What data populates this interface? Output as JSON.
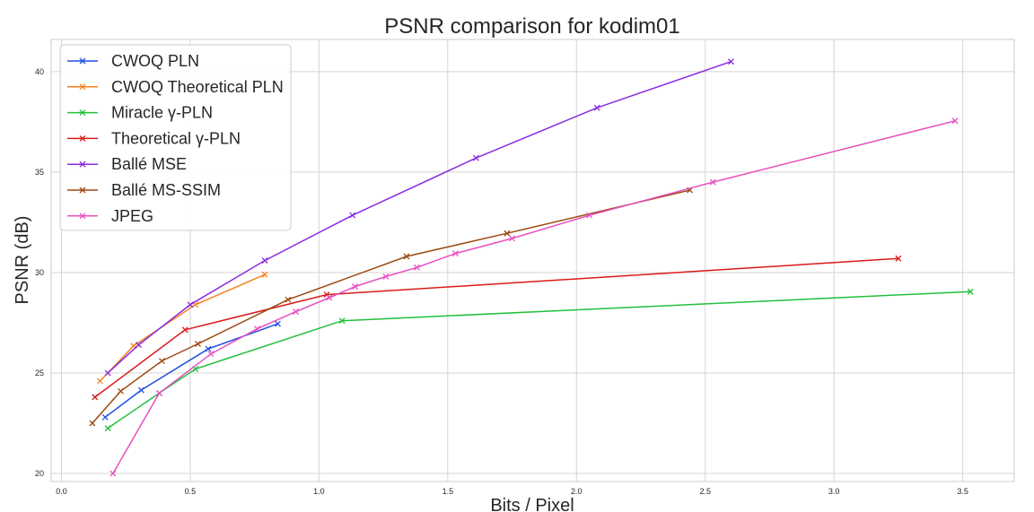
{
  "chart_data": {
    "type": "line",
    "title": "PSNR comparison for kodim01",
    "xlabel": "Bits / Pixel",
    "ylabel": "PSNR (dB)",
    "xlim": [
      -0.04,
      3.7
    ],
    "ylim": [
      19.6,
      41.6
    ],
    "xticks": [
      0.0,
      0.5,
      1.0,
      1.5,
      2.0,
      2.5,
      3.0,
      3.5
    ],
    "xtick_labels": [
      "0.0",
      "0.5",
      "1.0",
      "1.5",
      "2.0",
      "2.5",
      "3.0",
      "3.5"
    ],
    "yticks": [
      20,
      25,
      30,
      35,
      40
    ],
    "ytick_labels": [
      "20",
      "25",
      "30",
      "35",
      "40"
    ],
    "grid": true,
    "marker": "x",
    "legend_position": "top-left",
    "series": [
      {
        "name": "CWOQ PLN",
        "color": "#1f4fe0",
        "x": [
          0.17,
          0.31,
          0.57,
          0.84
        ],
        "y": [
          22.8,
          24.15,
          26.2,
          27.45
        ]
      },
      {
        "name": "CWOQ Theoretical PLN",
        "color": "#f5821f",
        "x": [
          0.15,
          0.28,
          0.52,
          0.79
        ],
        "y": [
          24.6,
          26.35,
          28.4,
          29.9
        ]
      },
      {
        "name": "Miracle γ-PLN",
        "color": "#22c03c",
        "x": [
          0.18,
          0.38,
          0.52,
          1.09,
          3.53
        ],
        "y": [
          22.25,
          24.0,
          25.2,
          27.6,
          29.05
        ]
      },
      {
        "name": "Theoretical γ-PLN",
        "color": "#d91a1a",
        "x": [
          0.13,
          0.48,
          1.03,
          3.25
        ],
        "y": [
          23.8,
          27.15,
          28.9,
          30.7
        ]
      },
      {
        "name": "Ballé MSE",
        "color": "#8b2be2",
        "x": [
          0.18,
          0.3,
          0.5,
          0.79,
          1.13,
          1.61,
          2.08,
          2.6
        ],
        "y": [
          25.0,
          26.4,
          28.4,
          30.6,
          32.85,
          35.7,
          38.2,
          40.5
        ]
      },
      {
        "name": "Ballé MS-SSIM",
        "color": "#9c4a12",
        "x": [
          0.12,
          0.23,
          0.39,
          0.53,
          0.88,
          1.34,
          1.73,
          2.44
        ],
        "y": [
          22.5,
          24.1,
          25.6,
          26.45,
          28.65,
          30.8,
          31.95,
          34.1
        ]
      },
      {
        "name": "JPEG",
        "color": "#e84fc0",
        "x": [
          0.2,
          0.38,
          0.58,
          0.76,
          0.91,
          1.04,
          1.14,
          1.26,
          1.38,
          1.53,
          1.75,
          2.05,
          2.53,
          3.47
        ],
        "y": [
          20.0,
          24.0,
          25.95,
          27.2,
          28.05,
          28.75,
          29.3,
          29.8,
          30.25,
          30.95,
          31.7,
          32.85,
          34.5,
          37.55
        ]
      }
    ]
  }
}
